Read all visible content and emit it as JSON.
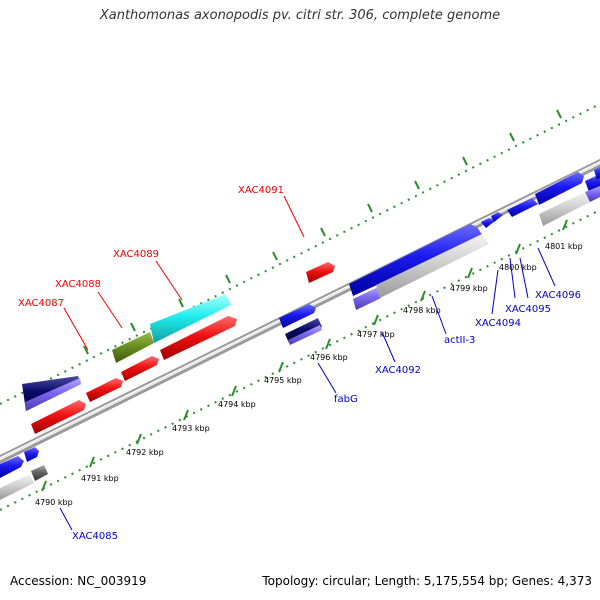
{
  "title": "Xanthomonas axonopodis pv. citri str. 306, complete genome",
  "footer": {
    "accession": "Accession: NC_003919",
    "topology": "Topology: circular; Length: 5,175,554 bp; Genes: 4,373"
  },
  "colors": {
    "track": "#888888",
    "ticks": "#2e8b2e",
    "red": "#ee1111",
    "cyan": "#22eeee",
    "olive": "#6b8e23",
    "blue": "#1a1aee",
    "lavender": "#7b68ee",
    "gray": "#c8c8c8",
    "darkgray": "#666666",
    "navy": "#0a0a6a",
    "label_red": "#ee0000",
    "label_blue": "#0000cc"
  },
  "kbp_labels": [
    "4790 kbp",
    "4791 kbp",
    "4792 kbp",
    "4793 kbp",
    "4794 kbp",
    "4795 kbp",
    "4796 kbp",
    "4797 kbp",
    "4798 kbp",
    "4799 kbp",
    "4800 kbp",
    "4801 kbp"
  ],
  "gene_labels": {
    "XAC4085": "XAC4085",
    "XAC4087": "XAC4087",
    "XAC4088": "XAC4088",
    "XAC4089": "XAC4089",
    "XAC4091": "XAC4091",
    "fabG": "fabG",
    "XAC4092": "XAC4092",
    "actII-3": "actII-3",
    "XAC4094": "XAC4094",
    "XAC4095": "XAC4095",
    "XAC4096": "XAC4096"
  }
}
